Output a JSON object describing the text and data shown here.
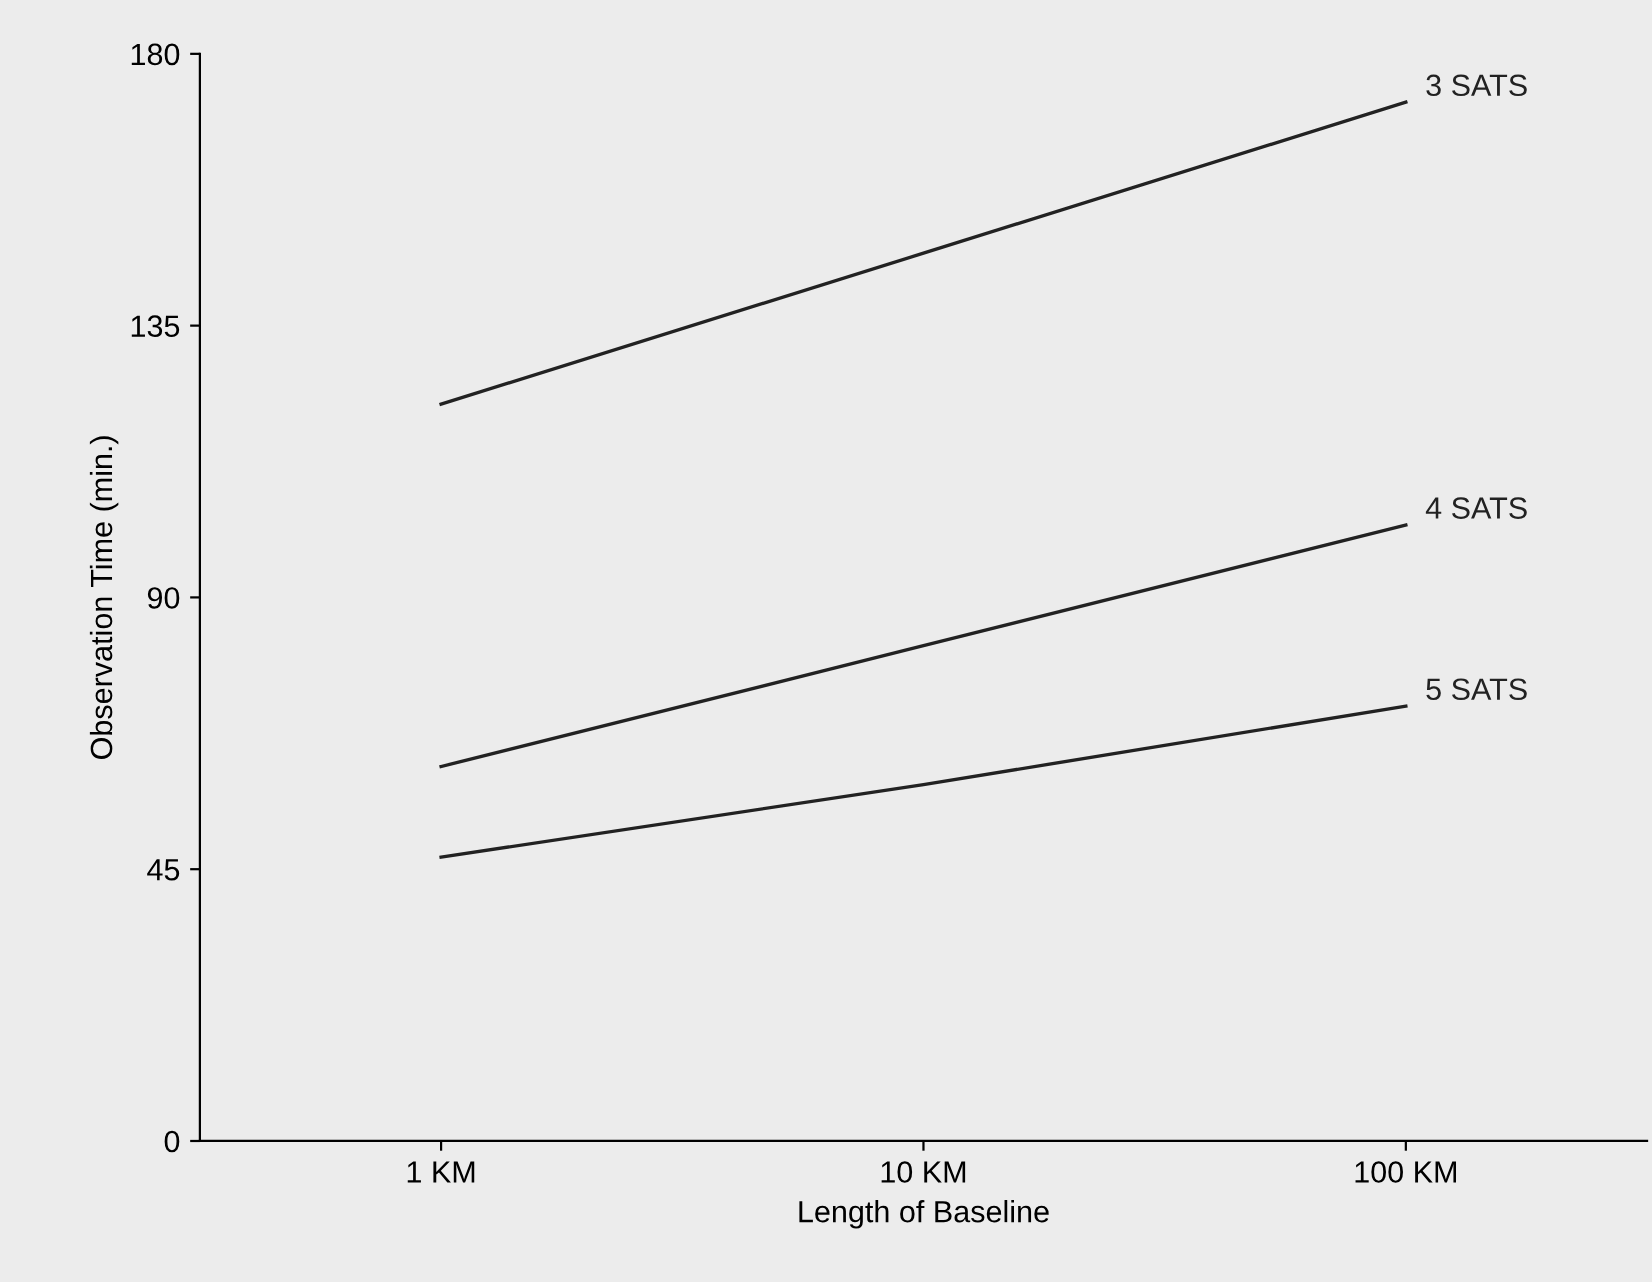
{
  "chart_data": {
    "type": "line",
    "xlabel": "Length of Baseline",
    "ylabel": "Observation Time (min.)",
    "categories": [
      "1 KM",
      "10 KM",
      "100 KM"
    ],
    "series": [
      {
        "name": "3 SATS",
        "color": "#222222",
        "values": [
          122,
          147,
          172
        ]
      },
      {
        "name": "4 SATS",
        "color": "#222222",
        "values": [
          62,
          82,
          102
        ]
      },
      {
        "name": "5 SATS",
        "color": "#222222",
        "values": [
          47,
          59,
          72
        ]
      }
    ],
    "ylim": [
      0,
      180
    ],
    "yticks": [
      0,
      45,
      90,
      135,
      180
    ],
    "grid": false,
    "legend": false,
    "marker": "none",
    "line_style": "solid"
  }
}
